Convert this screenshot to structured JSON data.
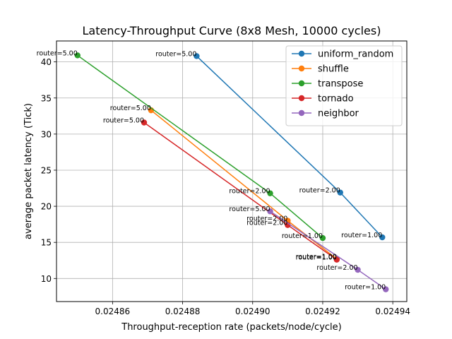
{
  "chart_data": {
    "type": "line",
    "title": "Latency-Throughput Curve (8x8 Mesh, 10000 cycles)",
    "xlabel": "Throughput-reception rate (packets/node/cycle)",
    "ylabel": "average packet latency (Tick)",
    "xlim": [
      0.024844,
      0.024944
    ],
    "ylim": [
      6.8,
      42.9
    ],
    "xticks": [
      {
        "value": 0.02486,
        "label": "0.02486"
      },
      {
        "value": 0.02488,
        "label": "0.02488"
      },
      {
        "value": 0.0249,
        "label": "0.02490"
      },
      {
        "value": 0.02492,
        "label": "0.02492"
      },
      {
        "value": 0.02494,
        "label": "0.02494"
      }
    ],
    "yticks": [
      {
        "value": 10,
        "label": "10"
      },
      {
        "value": 15,
        "label": "15"
      },
      {
        "value": 20,
        "label": "20"
      },
      {
        "value": 25,
        "label": "25"
      },
      {
        "value": 30,
        "label": "30"
      },
      {
        "value": 35,
        "label": "35"
      },
      {
        "value": 40,
        "label": "40"
      }
    ],
    "grid": true,
    "legend_position": "top-right",
    "series": [
      {
        "name": "uniform_random",
        "color": "#1f77b4",
        "points": [
          {
            "x": 0.024884,
            "y": 40.8,
            "label": "router=5.00"
          },
          {
            "x": 0.024925,
            "y": 21.9,
            "label": "router=2.00"
          },
          {
            "x": 0.024937,
            "y": 15.7,
            "label": "router=1.00"
          }
        ]
      },
      {
        "name": "shuffle",
        "color": "#ff7f0e",
        "points": [
          {
            "x": 0.024871,
            "y": 33.3,
            "label": "router=5.00"
          },
          {
            "x": 0.02491,
            "y": 18.0,
            "label": "router=2.00"
          },
          {
            "x": 0.024924,
            "y": 12.7,
            "label": "router=1.00"
          }
        ]
      },
      {
        "name": "transpose",
        "color": "#2ca02c",
        "points": [
          {
            "x": 0.02485,
            "y": 40.9,
            "label": "router=5.00"
          },
          {
            "x": 0.024905,
            "y": 21.8,
            "label": "router=2.00"
          },
          {
            "x": 0.02492,
            "y": 15.6,
            "label": "router=1.00"
          }
        ]
      },
      {
        "name": "tornado",
        "color": "#d62728",
        "points": [
          {
            "x": 0.024869,
            "y": 31.6,
            "label": "router=5.00"
          },
          {
            "x": 0.02491,
            "y": 17.4,
            "label": "router=2.00"
          },
          {
            "x": 0.024924,
            "y": 12.6,
            "label": "router=1.00"
          }
        ]
      },
      {
        "name": "neighbor",
        "color": "#9467bd",
        "points": [
          {
            "x": 0.024905,
            "y": 19.3,
            "label": "router=5.00"
          },
          {
            "x": 0.02493,
            "y": 11.2,
            "label": "router=2.00"
          },
          {
            "x": 0.024938,
            "y": 8.5,
            "label": "router=1.00"
          }
        ]
      }
    ]
  }
}
